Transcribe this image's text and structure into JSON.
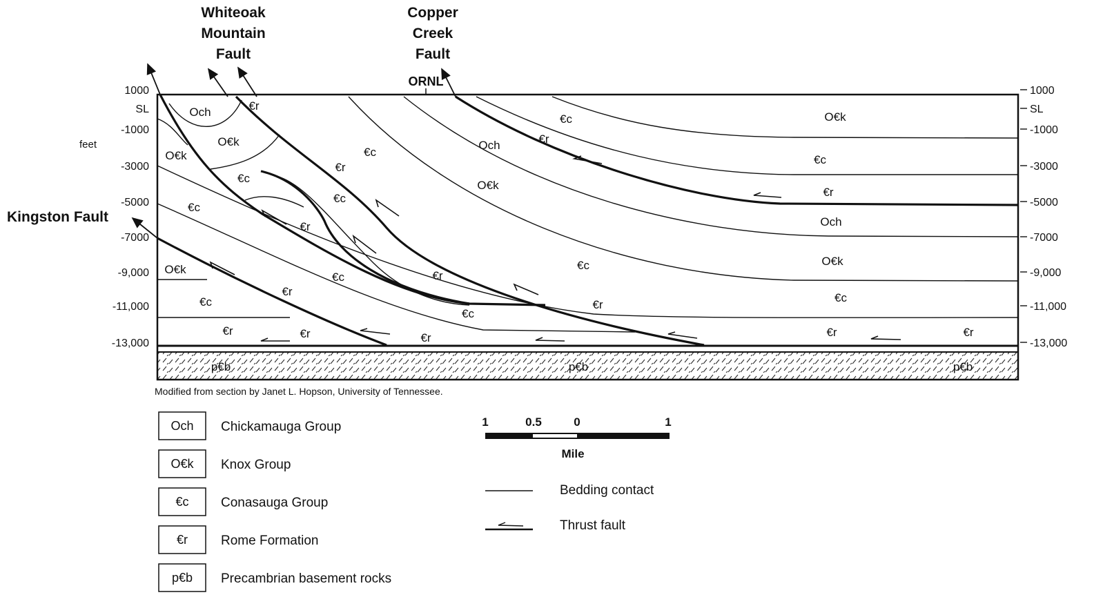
{
  "fault_labels": [
    {
      "lines": [
        "Whiteoak",
        "Mountain",
        "Fault"
      ]
    },
    {
      "lines": [
        "Copper",
        "Creek",
        "Fault"
      ]
    },
    {
      "lines": [
        "Kingston Fault"
      ]
    }
  ],
  "site_label": "ORNL",
  "depth_axis": {
    "unit": "feet",
    "labels": [
      "1000",
      "SL",
      "-1000",
      "-3000",
      "-5000",
      "-7000",
      "-9,000",
      "-11,000",
      "-13,000"
    ]
  },
  "section_labels": [
    "Och",
    "€r",
    "O€k",
    "O€k",
    "€c",
    "€c",
    "€r",
    "€c",
    "€c",
    "€r",
    "O€k",
    "€c",
    "€r",
    "€c",
    "€r",
    "€r",
    "€r",
    "€c",
    "€r",
    "€c",
    "€r",
    "O€k",
    "Och",
    "€c",
    "€r",
    "O€k",
    "€c",
    "€r",
    "Och",
    "O€k",
    "€c",
    "€r",
    "€r",
    "p€b",
    "p€b",
    "p€b"
  ],
  "caption": "Modified from section by Janet L. Hopson, University of Tennessee.",
  "legend": [
    {
      "symbol": "Och",
      "name": "Chickamauga Group"
    },
    {
      "symbol": "O€k",
      "name": "Knox Group"
    },
    {
      "symbol": "€c",
      "name": "Conasauga Group"
    },
    {
      "symbol": "€r",
      "name": "Rome Formation"
    },
    {
      "symbol": "p€b",
      "name": "Precambrian basement rocks"
    }
  ],
  "scale": {
    "labels": [
      "1",
      "0.5",
      "0",
      "1"
    ],
    "unit": "Mile"
  },
  "line_legend": [
    "Bedding contact",
    "Thrust fault"
  ]
}
